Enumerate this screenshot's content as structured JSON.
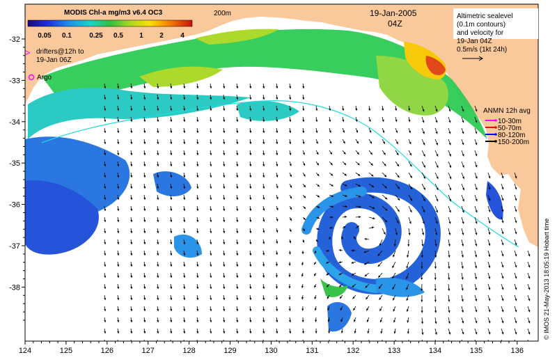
{
  "colorbar": {
    "title": "MODIS Chl-a mg/m3 v6.4 OC3",
    "ticks": [
      "0.05",
      "0.1",
      "0.25",
      "0.5",
      "1",
      "2",
      "4"
    ]
  },
  "header": {
    "contour_label": "200m",
    "date": "19-Jan-2005",
    "time": "04Z"
  },
  "legend_left": {
    "drifters": "drifters@12h to",
    "drifters_2": "19-Jan 06Z",
    "argo": "Argo"
  },
  "legend_right": {
    "l1": "Altimetric sealevel",
    "l2": "(0.1m contours)",
    "l3": "and velocity for",
    "l4": "19-Jan 04Z",
    "l5": "0.5m/s (1kt 24h)"
  },
  "anmn": {
    "title": "ANMN 12h avg",
    "items": [
      {
        "label": "10-30m",
        "color": "#ff00ff"
      },
      {
        "label": "50-70m",
        "color": "#ff0000"
      },
      {
        "label": "80-120m",
        "color": "#0000ff"
      },
      {
        "label": "150-200m",
        "color": "#000000"
      }
    ]
  },
  "axes": {
    "x_ticks": [
      "124",
      "125",
      "126",
      "127",
      "128",
      "129",
      "130",
      "131",
      "132",
      "133",
      "134",
      "135",
      "136"
    ],
    "y_ticks": [
      "-32",
      "-33",
      "-34",
      "-35",
      "-36",
      "-37",
      "-38"
    ]
  },
  "credit": "© IMOS 21-May-2013 18:05:19 Hobart time",
  "colors": {
    "land": "#f9c89b",
    "isobath": "#22dddd",
    "arrow": "#000000"
  }
}
